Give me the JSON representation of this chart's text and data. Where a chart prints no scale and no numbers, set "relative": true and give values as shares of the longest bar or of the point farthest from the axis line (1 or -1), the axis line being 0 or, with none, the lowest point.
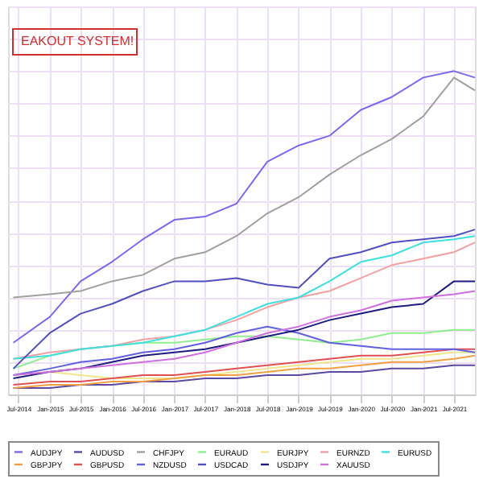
{
  "chart_data": {
    "type": "line",
    "relative": true,
    "grid": true,
    "legend": "bottom",
    "line_style": "solid",
    "marker": "none",
    "annotations": [
      "EAKOUT SYSTEM!"
    ],
    "x": [
      "2014-06",
      "2015-01",
      "2015-07",
      "2016-01",
      "2016-07",
      "2017-01",
      "2017-07",
      "2018-01",
      "2018-07",
      "2019-01",
      "2019-07",
      "2020-01",
      "2020-07",
      "2021-01",
      "2021-07",
      "2021-11"
    ],
    "xlim": [
      "2014-05",
      "2021-11"
    ],
    "xticks": [
      {
        "value": "2014-07",
        "label": "Jul-2014"
      },
      {
        "value": "2015-01",
        "label": "Jan-2015"
      },
      {
        "value": "2015-07",
        "label": "Jul-2015"
      },
      {
        "value": "2016-01",
        "label": "Jan-2016"
      },
      {
        "value": "2016-07",
        "label": "Jul-2016"
      },
      {
        "value": "2017-01",
        "label": "Jan-2017"
      },
      {
        "value": "2017-07",
        "label": "Jul-2017"
      },
      {
        "value": "2018-01",
        "label": "Jan-2018"
      },
      {
        "value": "2018-07",
        "label": "Jul-2018"
      },
      {
        "value": "2019-01",
        "label": "Jan-2019"
      },
      {
        "value": "2019-07",
        "label": "Jul-2019"
      },
      {
        "value": "2020-01",
        "label": "Jan-2020"
      },
      {
        "value": "2020-07",
        "label": "Jul-2020"
      },
      {
        "value": "2021-01",
        "label": "Jan-2021"
      },
      {
        "value": "2021-07",
        "label": "Jul-2021"
      }
    ],
    "series": [
      {
        "name": "AUDJPY",
        "color": "#7b68ee",
        "values": [
          0.16,
          0.24,
          0.35,
          0.41,
          0.48,
          0.54,
          0.55,
          0.59,
          0.72,
          0.77,
          0.8,
          0.88,
          0.92,
          0.98,
          1.0,
          0.98
        ]
      },
      {
        "name": "AUDUSD",
        "color": "#5b4aa0",
        "values": [
          0.02,
          0.02,
          0.03,
          0.03,
          0.04,
          0.04,
          0.05,
          0.05,
          0.06,
          0.06,
          0.07,
          0.07,
          0.08,
          0.08,
          0.09,
          0.09
        ]
      },
      {
        "name": "CHFJPY",
        "color": "#a0a0a0",
        "values": [
          0.3,
          0.31,
          0.32,
          0.35,
          0.37,
          0.42,
          0.44,
          0.49,
          0.56,
          0.61,
          0.68,
          0.74,
          0.79,
          0.86,
          0.98,
          0.94
        ]
      },
      {
        "name": "EURAUD",
        "color": "#90ee90",
        "values": [
          0.08,
          0.12,
          0.14,
          0.15,
          0.16,
          0.16,
          0.17,
          0.18,
          0.18,
          0.17,
          0.16,
          0.17,
          0.19,
          0.19,
          0.2,
          0.2
        ]
      },
      {
        "name": "EURJPY",
        "color": "#f0e68c",
        "values": [
          0.06,
          0.07,
          0.06,
          0.05,
          0.05,
          0.05,
          0.06,
          0.07,
          0.08,
          0.09,
          0.1,
          0.11,
          0.11,
          0.12,
          0.13,
          0.13
        ]
      },
      {
        "name": "EURNZD",
        "color": "#f4a0a0",
        "values": [
          0.11,
          0.13,
          0.14,
          0.15,
          0.17,
          0.18,
          0.2,
          0.23,
          0.27,
          0.3,
          0.32,
          0.36,
          0.4,
          0.42,
          0.44,
          0.47
        ]
      },
      {
        "name": "EURUSD",
        "color": "#40e0e0",
        "values": [
          0.11,
          0.12,
          0.14,
          0.15,
          0.16,
          0.18,
          0.2,
          0.24,
          0.28,
          0.3,
          0.35,
          0.41,
          0.43,
          0.47,
          0.48,
          0.49
        ]
      },
      {
        "name": "GBPJPY",
        "color": "#f0a040",
        "values": [
          0.02,
          0.03,
          0.03,
          0.04,
          0.04,
          0.05,
          0.06,
          0.06,
          0.07,
          0.08,
          0.08,
          0.09,
          0.1,
          0.1,
          0.11,
          0.12
        ]
      },
      {
        "name": "GBPUSD",
        "color": "#e05050",
        "values": [
          0.03,
          0.04,
          0.04,
          0.05,
          0.06,
          0.06,
          0.07,
          0.08,
          0.09,
          0.1,
          0.11,
          0.12,
          0.12,
          0.13,
          0.14,
          0.14
        ]
      },
      {
        "name": "NZDUSD",
        "color": "#6060e0",
        "values": [
          0.06,
          0.08,
          0.1,
          0.11,
          0.13,
          0.14,
          0.16,
          0.19,
          0.21,
          0.19,
          0.16,
          0.15,
          0.14,
          0.14,
          0.14,
          0.13
        ]
      },
      {
        "name": "USDCAD",
        "color": "#5050c0",
        "values": [
          0.08,
          0.19,
          0.25,
          0.28,
          0.32,
          0.35,
          0.35,
          0.36,
          0.34,
          0.33,
          0.42,
          0.44,
          0.47,
          0.48,
          0.49,
          0.51
        ]
      },
      {
        "name": "USDJPY",
        "color": "#1c1c80",
        "values": [
          0.05,
          0.07,
          0.08,
          0.1,
          0.12,
          0.13,
          0.14,
          0.16,
          0.18,
          0.2,
          0.23,
          0.25,
          0.27,
          0.28,
          0.35,
          0.35
        ]
      },
      {
        "name": "XAUUSD",
        "color": "#d070e0",
        "values": [
          0.06,
          0.07,
          0.08,
          0.09,
          0.1,
          0.11,
          0.13,
          0.16,
          0.19,
          0.21,
          0.24,
          0.26,
          0.29,
          0.3,
          0.31,
          0.32
        ]
      }
    ]
  }
}
